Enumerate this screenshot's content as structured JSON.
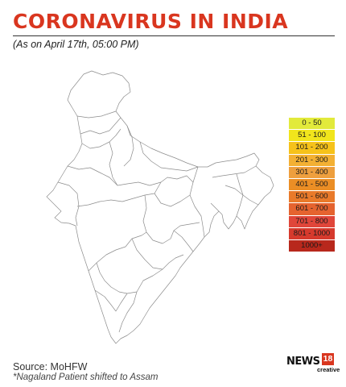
{
  "header": {
    "title": "CORONAVIRUS IN INDIA",
    "subtitle": "(As on April 17th, 05:00 PM)"
  },
  "legend": [
    {
      "label": "0 - 50",
      "color": "#e2ea3b"
    },
    {
      "label": "51 - 100",
      "color": "#f1e51c"
    },
    {
      "label": "101 - 200",
      "color": "#f6c21a"
    },
    {
      "label": "201 - 300",
      "color": "#f3b033"
    },
    {
      "label": "301 - 400",
      "color": "#ee9f3e"
    },
    {
      "label": "401 - 500",
      "color": "#eb8e25"
    },
    {
      "label": "501 - 600",
      "color": "#e97a2a"
    },
    {
      "label": "601 - 700",
      "color": "#e5632f"
    },
    {
      "label": "701 - 800",
      "color": "#e0463a"
    },
    {
      "label": "801 - 1000",
      "color": "#d63a2d"
    },
    {
      "label": "1000+",
      "color": "#b8281c"
    }
  ],
  "footer": {
    "source": "Source: MoHFW",
    "note": "*Nagaland Patient shifted to Assam"
  },
  "logo": {
    "name": "NEWS",
    "number": "18",
    "tag": "creative"
  },
  "colors": {
    "accent": "#d9361f",
    "map_outline": "#8c8c8c"
  }
}
